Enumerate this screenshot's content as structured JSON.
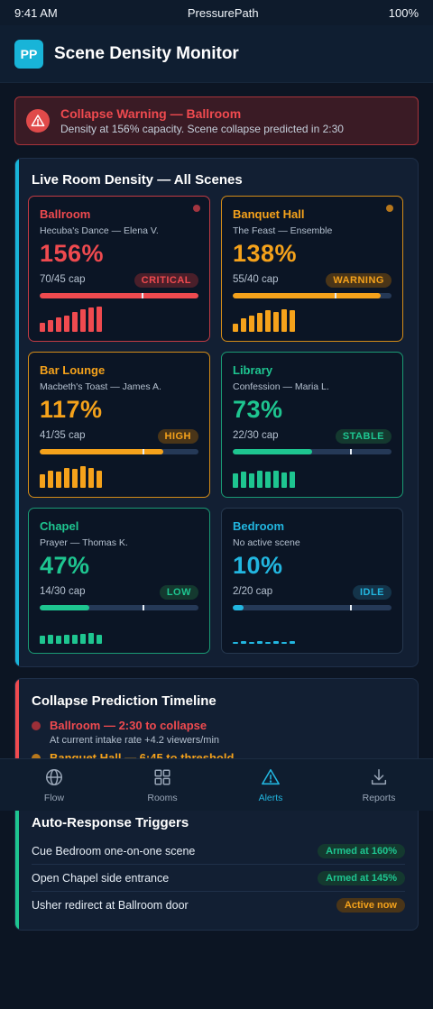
{
  "status_bar": {
    "time": "9:41 AM",
    "app": "PressurePath",
    "battery": "100%"
  },
  "header": {
    "logo": "PP",
    "title": "Scene Density Monitor"
  },
  "alert": {
    "title": "Collapse Warning — Ballroom",
    "text": "Density at 156% capacity. Scene collapse predicted in 2:30",
    "icon": "warning-triangle-icon"
  },
  "density_panel": {
    "title": "Live Room Density — All Scenes",
    "rooms": [
      {
        "name": "Ballroom",
        "scene": "Hecuba's Dance — Elena V.",
        "pct": "156%",
        "cap": "70/45 cap",
        "badge": "CRITICAL",
        "fill": 1.0,
        "threshold": 0.64,
        "color": "#ef4a4f",
        "border": "#c23b44",
        "badge_bg": "#4a1f2a",
        "dot": "#a33540",
        "bars": [
          0.35,
          0.45,
          0.55,
          0.6,
          0.75,
          0.85,
          0.9,
          0.95
        ]
      },
      {
        "name": "Banquet Hall",
        "scene": "The Feast — Ensemble",
        "pct": "138%",
        "cap": "55/40 cap",
        "badge": "WARNING",
        "fill": 0.93,
        "threshold": 0.64,
        "color": "#f5a21b",
        "border": "#d48c18",
        "badge_bg": "#4a3518",
        "dot": "#b7771c",
        "bars": [
          0.3,
          0.5,
          0.6,
          0.7,
          0.8,
          0.75,
          0.85,
          0.8
        ]
      },
      {
        "name": "Bar Lounge",
        "scene": "Macbeth's Toast — James A.",
        "pct": "117%",
        "cap": "41/35 cap",
        "badge": "HIGH",
        "fill": 0.78,
        "threshold": 0.65,
        "color": "#f5a21b",
        "border": "#d48c18",
        "badge_bg": "#4a3518",
        "dot": "",
        "bars": [
          0.5,
          0.65,
          0.6,
          0.75,
          0.7,
          0.8,
          0.75,
          0.65
        ]
      },
      {
        "name": "Library",
        "scene": "Confession — Maria L.",
        "pct": "73%",
        "cap": "22/30 cap",
        "badge": "STABLE",
        "fill": 0.5,
        "threshold": 0.74,
        "color": "#1ec590",
        "border": "#1a9a74",
        "badge_bg": "#14392f",
        "dot": "",
        "bars": [
          0.55,
          0.6,
          0.55,
          0.65,
          0.6,
          0.62,
          0.58,
          0.6
        ]
      },
      {
        "name": "Chapel",
        "scene": "Prayer — Thomas K.",
        "pct": "47%",
        "cap": "14/30 cap",
        "badge": "LOW",
        "fill": 0.31,
        "threshold": 0.65,
        "color": "#1ec590",
        "border": "#1a9a74",
        "badge_bg": "#14392f",
        "dot": "",
        "bars": [
          0.3,
          0.35,
          0.3,
          0.35,
          0.35,
          0.38,
          0.4,
          0.35
        ]
      },
      {
        "name": "Bedroom",
        "scene": "No active scene",
        "pct": "10%",
        "cap": "2/20 cap",
        "badge": "IDLE",
        "fill": 0.07,
        "threshold": 0.74,
        "color": "#22b6e0",
        "border": "#26384f",
        "badge_bg": "#14344a",
        "dot": "",
        "bars": [
          0.08,
          0.1,
          0.08,
          0.1,
          0.08,
          0.1,
          0.08,
          0.1
        ]
      }
    ]
  },
  "timeline_panel": {
    "title": "Collapse Prediction Timeline",
    "items": [
      {
        "title": "Ballroom — 2:30 to collapse",
        "sub": "At current intake rate +4.2 viewers/min",
        "color": "#ef4a4f",
        "dot": "#9c2f38"
      },
      {
        "title": "Banquet Hall — 6:45 to threshold",
        "sub": "",
        "color": "#f5a21b",
        "dot": "#b7771c"
      }
    ]
  },
  "tabbar": {
    "tabs": [
      {
        "label": "Flow",
        "icon": "globe-icon"
      },
      {
        "label": "Rooms",
        "icon": "grid-icon"
      },
      {
        "label": "Alerts",
        "icon": "alert-triangle-icon"
      },
      {
        "label": "Reports",
        "icon": "download-icon"
      }
    ],
    "active": "Alerts"
  },
  "triggers_panel": {
    "title": "Auto-Response Triggers",
    "items": [
      {
        "label": "Cue Bedroom one-on-one scene",
        "status": "Armed at 160%",
        "color": "#1ec590",
        "bg": "#14392f"
      },
      {
        "label": "Open Chapel side entrance",
        "status": "Armed at 145%",
        "color": "#1ec590",
        "bg": "#14392f"
      },
      {
        "label": "Usher redirect at Ballroom door",
        "status": "Active now",
        "color": "#f5a21b",
        "bg": "#4a3518"
      }
    ]
  },
  "colors": {
    "accent": "#22b6e0",
    "critical": "#ef4a4f",
    "warning": "#f5a21b",
    "stable": "#1ec590"
  }
}
